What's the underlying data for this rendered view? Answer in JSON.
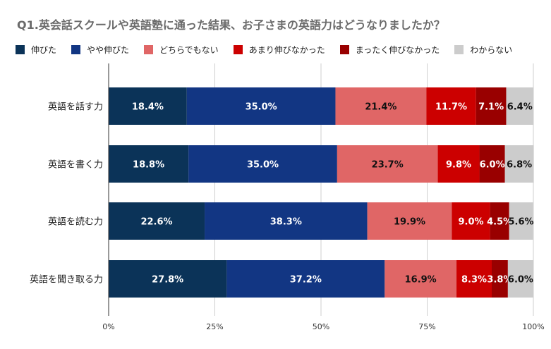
{
  "chart_data": {
    "type": "bar",
    "orientation": "horizontal",
    "stacked": true,
    "title": "Q1.英会話スクールや英語塾に通った結果、お子さまの英語力はどうなりましたか？",
    "categories": [
      "英語を話す力",
      "英語を書く力",
      "英語を読む力",
      "英語を聞き取る力"
    ],
    "series": [
      {
        "name": "伸びた",
        "color": "#0b3358",
        "values": [
          18.4,
          18.8,
          22.6,
          27.8
        ],
        "labels": [
          "18.4%",
          "18.8%",
          "22.6%",
          "27.8%"
        ]
      },
      {
        "name": "やや伸びた",
        "color": "#123683",
        "values": [
          35.0,
          35.0,
          38.3,
          37.2
        ],
        "labels": [
          "35.0%",
          "35.0%",
          "38.3%",
          "37.2%"
        ]
      },
      {
        "name": "どちらでもない",
        "color": "#e06666",
        "values": [
          21.4,
          23.7,
          19.9,
          16.9
        ],
        "labels": [
          "21.4%",
          "23.7%",
          "19.9%",
          "16.9%"
        ]
      },
      {
        "name": "あまり伸びなかった",
        "color": "#cc0000",
        "values": [
          11.7,
          9.8,
          9.0,
          8.3
        ],
        "labels": [
          "11.7%",
          "9.8%",
          "9.0%",
          "8.3%"
        ]
      },
      {
        "name": "まったく伸びなかった",
        "color": "#990000",
        "values": [
          7.1,
          6.0,
          4.5,
          3.8
        ],
        "labels": [
          "7.1%",
          "6.0%",
          "4.5%",
          "3.8%"
        ]
      },
      {
        "name": "わからない",
        "color": "#cccccc",
        "values": [
          6.4,
          6.8,
          5.6,
          6.0
        ],
        "labels": [
          "6.4%",
          "6.8%",
          "5.6%",
          "6.0%"
        ]
      }
    ],
    "xlim": [
      0,
      100
    ],
    "xticks": [
      0,
      25,
      50,
      75,
      100
    ],
    "xtick_labels": [
      "0%",
      "25%",
      "50%",
      "75%",
      "100%"
    ],
    "grid": "vertical",
    "legend_position": "top"
  }
}
